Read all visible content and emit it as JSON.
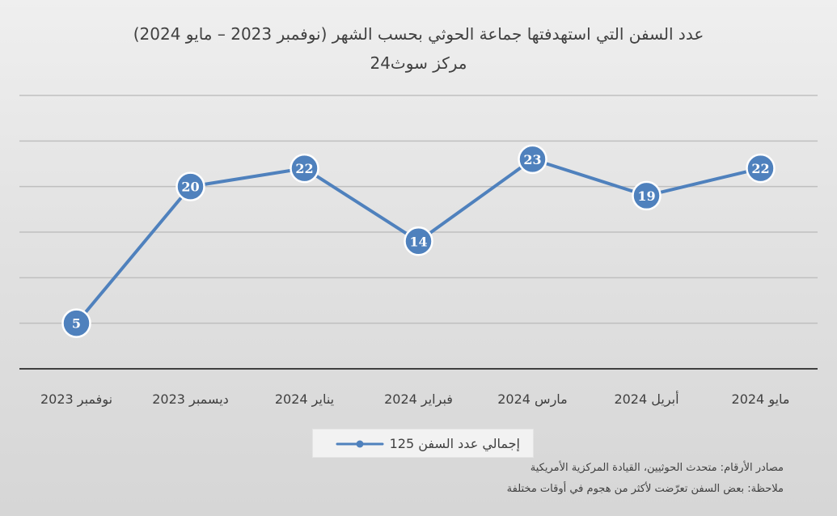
{
  "colors": {
    "line": "#4f81bd",
    "marker_fill": "#4f81bd",
    "marker_stroke": "#ffffff",
    "gridline": "#bfbfbf",
    "axis": "#404040"
  },
  "chart_data": {
    "type": "line",
    "title": "عدد السفن التي استهدفتها جماعة الحوثي بحسب الشهر (نوفمبر 2023 – مايو 2024)",
    "subtitle": "مركز سوث24",
    "categories": [
      "نوفمبر 2023",
      "ديسمبر 2023",
      "يناير 2024",
      "فبراير 2024",
      "مارس 2024",
      "أبريل 2024",
      "مايو 2024"
    ],
    "series": [
      {
        "name": "إجمالي عدد السفن 125",
        "values": [
          5,
          20,
          22,
          14,
          23,
          19,
          22
        ]
      }
    ],
    "ylim": [
      0,
      30
    ],
    "y_gridlines": [
      5,
      10,
      15,
      20,
      25,
      30
    ],
    "y_tick_labels_visible": false,
    "data_labels": true,
    "legend_position": "bottom",
    "grid": true
  },
  "notes": {
    "sources": "مصادر الأرقام: متحدث الحوثيين، القيادة المركزية الأمريكية",
    "remark": "ملاحظة: بعض السفن تعرّضت لأكثر من هجوم في أوقات مختلفة"
  }
}
